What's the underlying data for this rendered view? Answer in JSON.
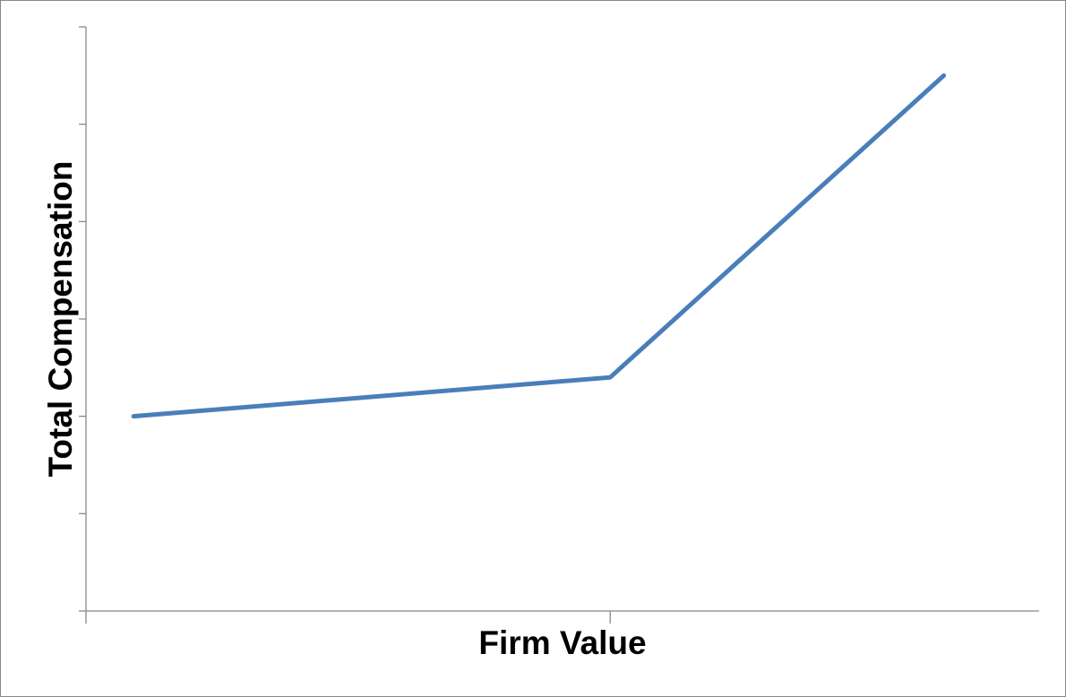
{
  "chart_data": {
    "type": "line",
    "x_label": "Firm Value",
    "y_label": "Total Compensation",
    "x": [
      1,
      11,
      18
    ],
    "values": [
      2.0,
      2.4,
      5.5
    ],
    "color": "#4a7ebb",
    "xlim": [
      0,
      20
    ],
    "xticks": [
      0,
      11
    ],
    "ylim": [
      0,
      6
    ],
    "yticks": [
      0,
      1,
      2,
      3,
      4,
      5,
      6
    ]
  }
}
